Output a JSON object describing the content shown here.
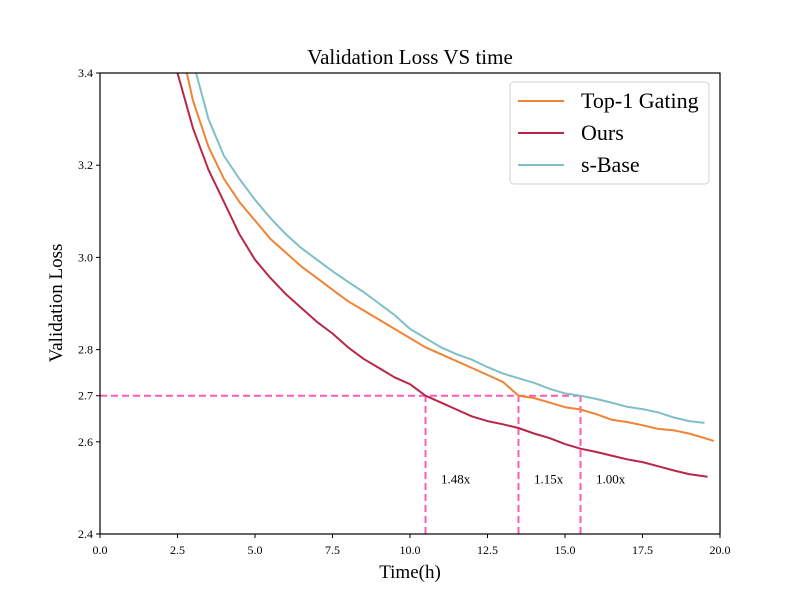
{
  "chart_data": {
    "type": "line",
    "title": "Validation Loss VS time",
    "xlabel": "Time(h)",
    "ylabel": "Validation Loss",
    "xlim": [
      0.0,
      20.0
    ],
    "ylim": [
      2.4,
      3.4
    ],
    "xticks": [
      0.0,
      2.5,
      5.0,
      7.5,
      10.0,
      12.5,
      15.0,
      17.5,
      20.0
    ],
    "xtick_labels": [
      "0.0",
      "2.5",
      "5.0",
      "7.5",
      "10.0",
      "12.5",
      "15.0",
      "17.5",
      "20.0"
    ],
    "yticks": [
      2.4,
      2.6,
      2.7,
      2.8,
      3.0,
      3.2,
      3.4
    ],
    "ytick_labels": [
      "2.4",
      "2.6",
      "2.7",
      "2.8",
      "3.0",
      "3.2",
      "3.4"
    ],
    "grid": false,
    "legend_position": "top-right",
    "series": [
      {
        "name": "Top-1 Gating",
        "color": "#f08336",
        "x": [
          2.8,
          3.0,
          3.5,
          4.0,
          4.5,
          5.0,
          5.5,
          6.0,
          6.5,
          7.0,
          7.5,
          8.0,
          8.5,
          9.0,
          9.5,
          10.0,
          10.5,
          11.0,
          11.5,
          12.0,
          12.5,
          13.0,
          13.5,
          14.0,
          14.5,
          15.0,
          15.5,
          16.0,
          16.5,
          17.0,
          17.5,
          18.0,
          18.5,
          19.0,
          19.5,
          19.8
        ],
        "y": [
          3.4,
          3.34,
          3.24,
          3.17,
          3.12,
          3.08,
          3.04,
          3.01,
          2.98,
          2.955,
          2.93,
          2.905,
          2.885,
          2.865,
          2.845,
          2.825,
          2.805,
          2.79,
          2.775,
          2.76,
          2.745,
          2.73,
          2.7,
          2.695,
          2.685,
          2.675,
          2.67,
          2.66,
          2.648,
          2.643,
          2.636,
          2.628,
          2.625,
          2.618,
          2.608,
          2.602
        ]
      },
      {
        "name": "Ours",
        "color": "#b8274a",
        "x": [
          2.5,
          3.0,
          3.5,
          4.0,
          4.5,
          5.0,
          5.5,
          6.0,
          6.5,
          7.0,
          7.5,
          8.0,
          8.5,
          9.0,
          9.5,
          10.0,
          10.5,
          11.0,
          11.5,
          12.0,
          12.5,
          13.0,
          13.5,
          14.0,
          14.5,
          15.0,
          15.5,
          16.0,
          16.5,
          17.0,
          17.5,
          18.0,
          18.5,
          19.0,
          19.6
        ],
        "y": [
          3.4,
          3.28,
          3.19,
          3.12,
          3.05,
          2.995,
          2.955,
          2.92,
          2.89,
          2.86,
          2.835,
          2.805,
          2.78,
          2.76,
          2.74,
          2.725,
          2.7,
          2.685,
          2.67,
          2.655,
          2.645,
          2.638,
          2.63,
          2.618,
          2.608,
          2.595,
          2.585,
          2.578,
          2.57,
          2.562,
          2.556,
          2.547,
          2.538,
          2.53,
          2.524
        ]
      },
      {
        "name": "s-Base",
        "color": "#7fbfc6",
        "x": [
          3.1,
          3.5,
          4.0,
          4.5,
          5.0,
          5.5,
          6.0,
          6.5,
          7.0,
          7.5,
          8.0,
          8.5,
          9.0,
          9.5,
          10.0,
          10.5,
          11.0,
          11.5,
          12.0,
          12.5,
          13.0,
          13.5,
          14.0,
          14.5,
          15.0,
          15.5,
          16.0,
          16.5,
          17.0,
          17.5,
          18.0,
          18.5,
          19.0,
          19.5
        ],
        "y": [
          3.4,
          3.3,
          3.22,
          3.17,
          3.125,
          3.085,
          3.05,
          3.02,
          2.995,
          2.97,
          2.947,
          2.925,
          2.9,
          2.875,
          2.845,
          2.825,
          2.805,
          2.79,
          2.778,
          2.762,
          2.748,
          2.738,
          2.728,
          2.715,
          2.705,
          2.7,
          2.693,
          2.685,
          2.676,
          2.671,
          2.664,
          2.653,
          2.645,
          2.641
        ]
      }
    ],
    "reference_lines": {
      "color": "#ff5bb5",
      "horizontal": {
        "y": 2.7,
        "x_from": 0.0,
        "x_to": 15.5
      },
      "vertical": [
        {
          "x": 10.5,
          "y_from": 2.4,
          "y_to": 2.7
        },
        {
          "x": 13.5,
          "y_from": 2.4,
          "y_to": 2.7
        },
        {
          "x": 15.5,
          "y_from": 2.4,
          "y_to": 2.7
        }
      ]
    },
    "annotations": [
      {
        "text": "1.48x",
        "x": 11.0,
        "y": 2.51
      },
      {
        "text": "1.15x",
        "x": 14.0,
        "y": 2.51
      },
      {
        "text": "1.00x",
        "x": 16.0,
        "y": 2.51
      }
    ]
  }
}
